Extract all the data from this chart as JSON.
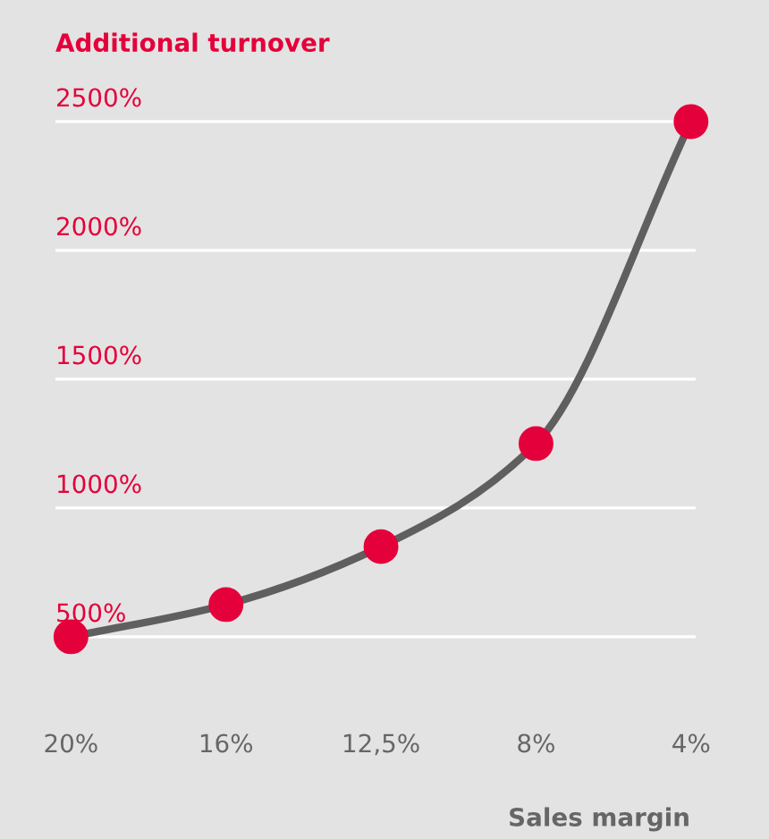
{
  "chart_data": {
    "type": "line",
    "title": "Additional turnover",
    "xlabel": "Sales margin",
    "categories": [
      "20%",
      "16%",
      "12,5%",
      "8%",
      "4%"
    ],
    "series": [
      {
        "color": "#5f5f5f",
        "values": [
          500,
          625,
          850,
          1250,
          2500
        ]
      }
    ],
    "marker": "circle",
    "line_style": "solid",
    "ylim": [
      -285,
      2972
    ],
    "yticks": [
      {
        "value": 500,
        "label": "500%"
      },
      {
        "value": 1000,
        "label": "1000%"
      },
      {
        "value": 1500,
        "label": "1500%"
      },
      {
        "value": 2000,
        "label": "2000%"
      },
      {
        "value": 2500,
        "label": "2500%"
      }
    ],
    "grid": "y",
    "legend": false
  }
}
